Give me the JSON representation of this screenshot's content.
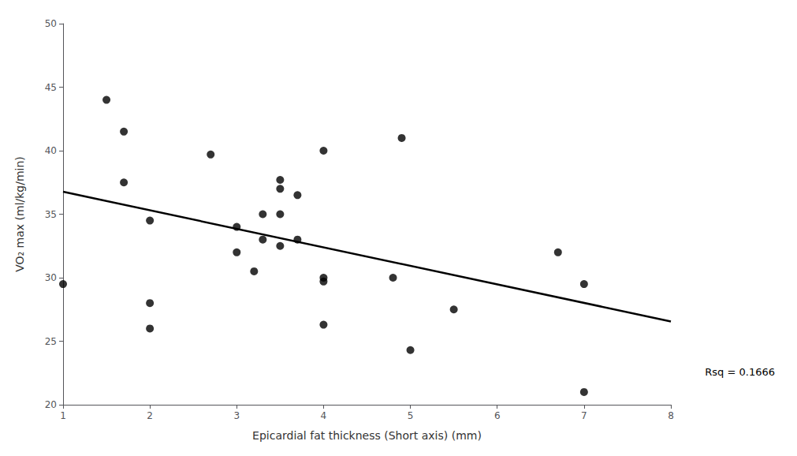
{
  "chart_data": {
    "type": "scatter",
    "xlabel": "Epicardial fat thickness (Short axis) (mm)",
    "ylabel": "VO₂ max (ml/kg/min)",
    "annotation": "Rsq = 0.1666",
    "xlim": [
      1,
      8
    ],
    "ylim": [
      20,
      50
    ],
    "xticks": [
      1,
      2,
      3,
      4,
      5,
      6,
      7,
      8
    ],
    "yticks": [
      20,
      25,
      30,
      35,
      40,
      45,
      50
    ],
    "grid": false,
    "series": [
      {
        "type": "scatter",
        "color": "#000000",
        "x": [
          1.0,
          1.5,
          1.7,
          1.7,
          2.0,
          2.0,
          2.0,
          2.7,
          3.0,
          3.0,
          3.2,
          3.3,
          3.3,
          3.5,
          3.5,
          3.5,
          3.5,
          3.7,
          3.7,
          4.0,
          4.0,
          4.0,
          4.0,
          4.8,
          4.9,
          5.0,
          5.5,
          6.7,
          7.0,
          7.0
        ],
        "values": [
          29.5,
          44.0,
          41.5,
          37.5,
          34.5,
          28.0,
          26.0,
          39.7,
          34.0,
          32.0,
          30.5,
          35.0,
          33.0,
          37.7,
          37.0,
          35.0,
          32.5,
          36.5,
          33.0,
          40.0,
          30.0,
          29.7,
          26.3,
          30.0,
          41.0,
          24.3,
          27.5,
          32.0,
          21.0,
          29.5
        ]
      },
      {
        "type": "line",
        "color": "#000000",
        "x": [
          1,
          8
        ],
        "values": [
          36.76668,
          26.55571
        ]
      }
    ]
  }
}
